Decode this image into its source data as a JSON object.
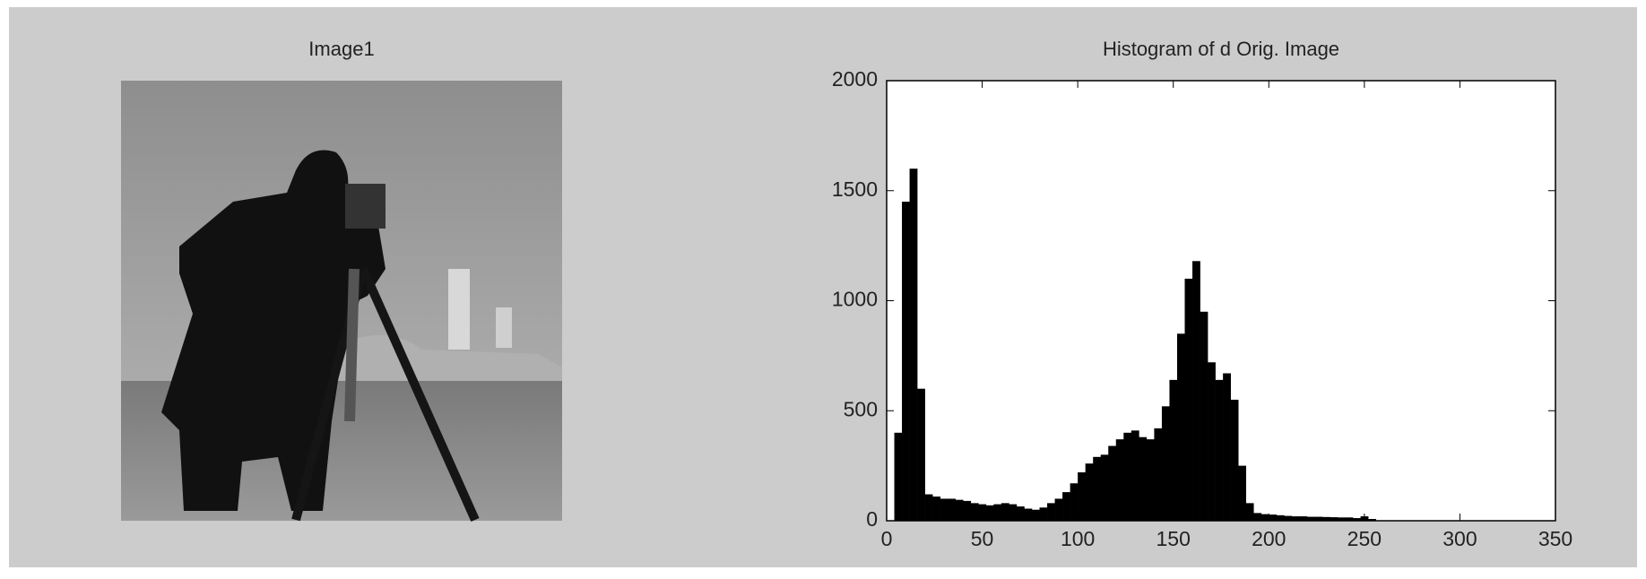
{
  "left_panel": {
    "title": "Image1"
  },
  "chart_data": {
    "type": "histogram",
    "title": "Histogram of d Orig. Image",
    "bins": [
      0,
      4,
      8,
      12,
      16,
      20,
      24,
      28,
      32,
      36,
      40,
      44,
      48,
      52,
      56,
      60,
      64,
      68,
      72,
      76,
      80,
      84,
      88,
      92,
      96,
      100,
      104,
      108,
      112,
      116,
      120,
      124,
      128,
      132,
      136,
      140,
      144,
      148,
      152,
      156,
      160,
      164,
      168,
      172,
      176,
      180,
      184,
      188,
      192,
      196,
      200,
      204,
      208,
      212,
      216,
      220,
      224,
      228,
      232,
      236,
      240,
      244,
      248,
      252,
      256
    ],
    "values": [
      0,
      400,
      1450,
      1600,
      600,
      120,
      110,
      100,
      100,
      95,
      90,
      80,
      75,
      70,
      75,
      80,
      75,
      65,
      55,
      50,
      60,
      80,
      100,
      130,
      170,
      220,
      260,
      290,
      300,
      340,
      370,
      400,
      410,
      380,
      370,
      420,
      520,
      640,
      850,
      1100,
      1180,
      950,
      720,
      640,
      670,
      550,
      250,
      80,
      35,
      30,
      28,
      25,
      22,
      20,
      20,
      18,
      18,
      17,
      16,
      15,
      15,
      12,
      20,
      8
    ],
    "color": "#000000",
    "xlim": [
      0,
      350
    ],
    "xticks": [
      0,
      50,
      100,
      150,
      200,
      250,
      300,
      350
    ],
    "ylim": [
      0,
      2000
    ],
    "yticks": [
      0,
      500,
      1000,
      1500,
      2000
    ]
  }
}
